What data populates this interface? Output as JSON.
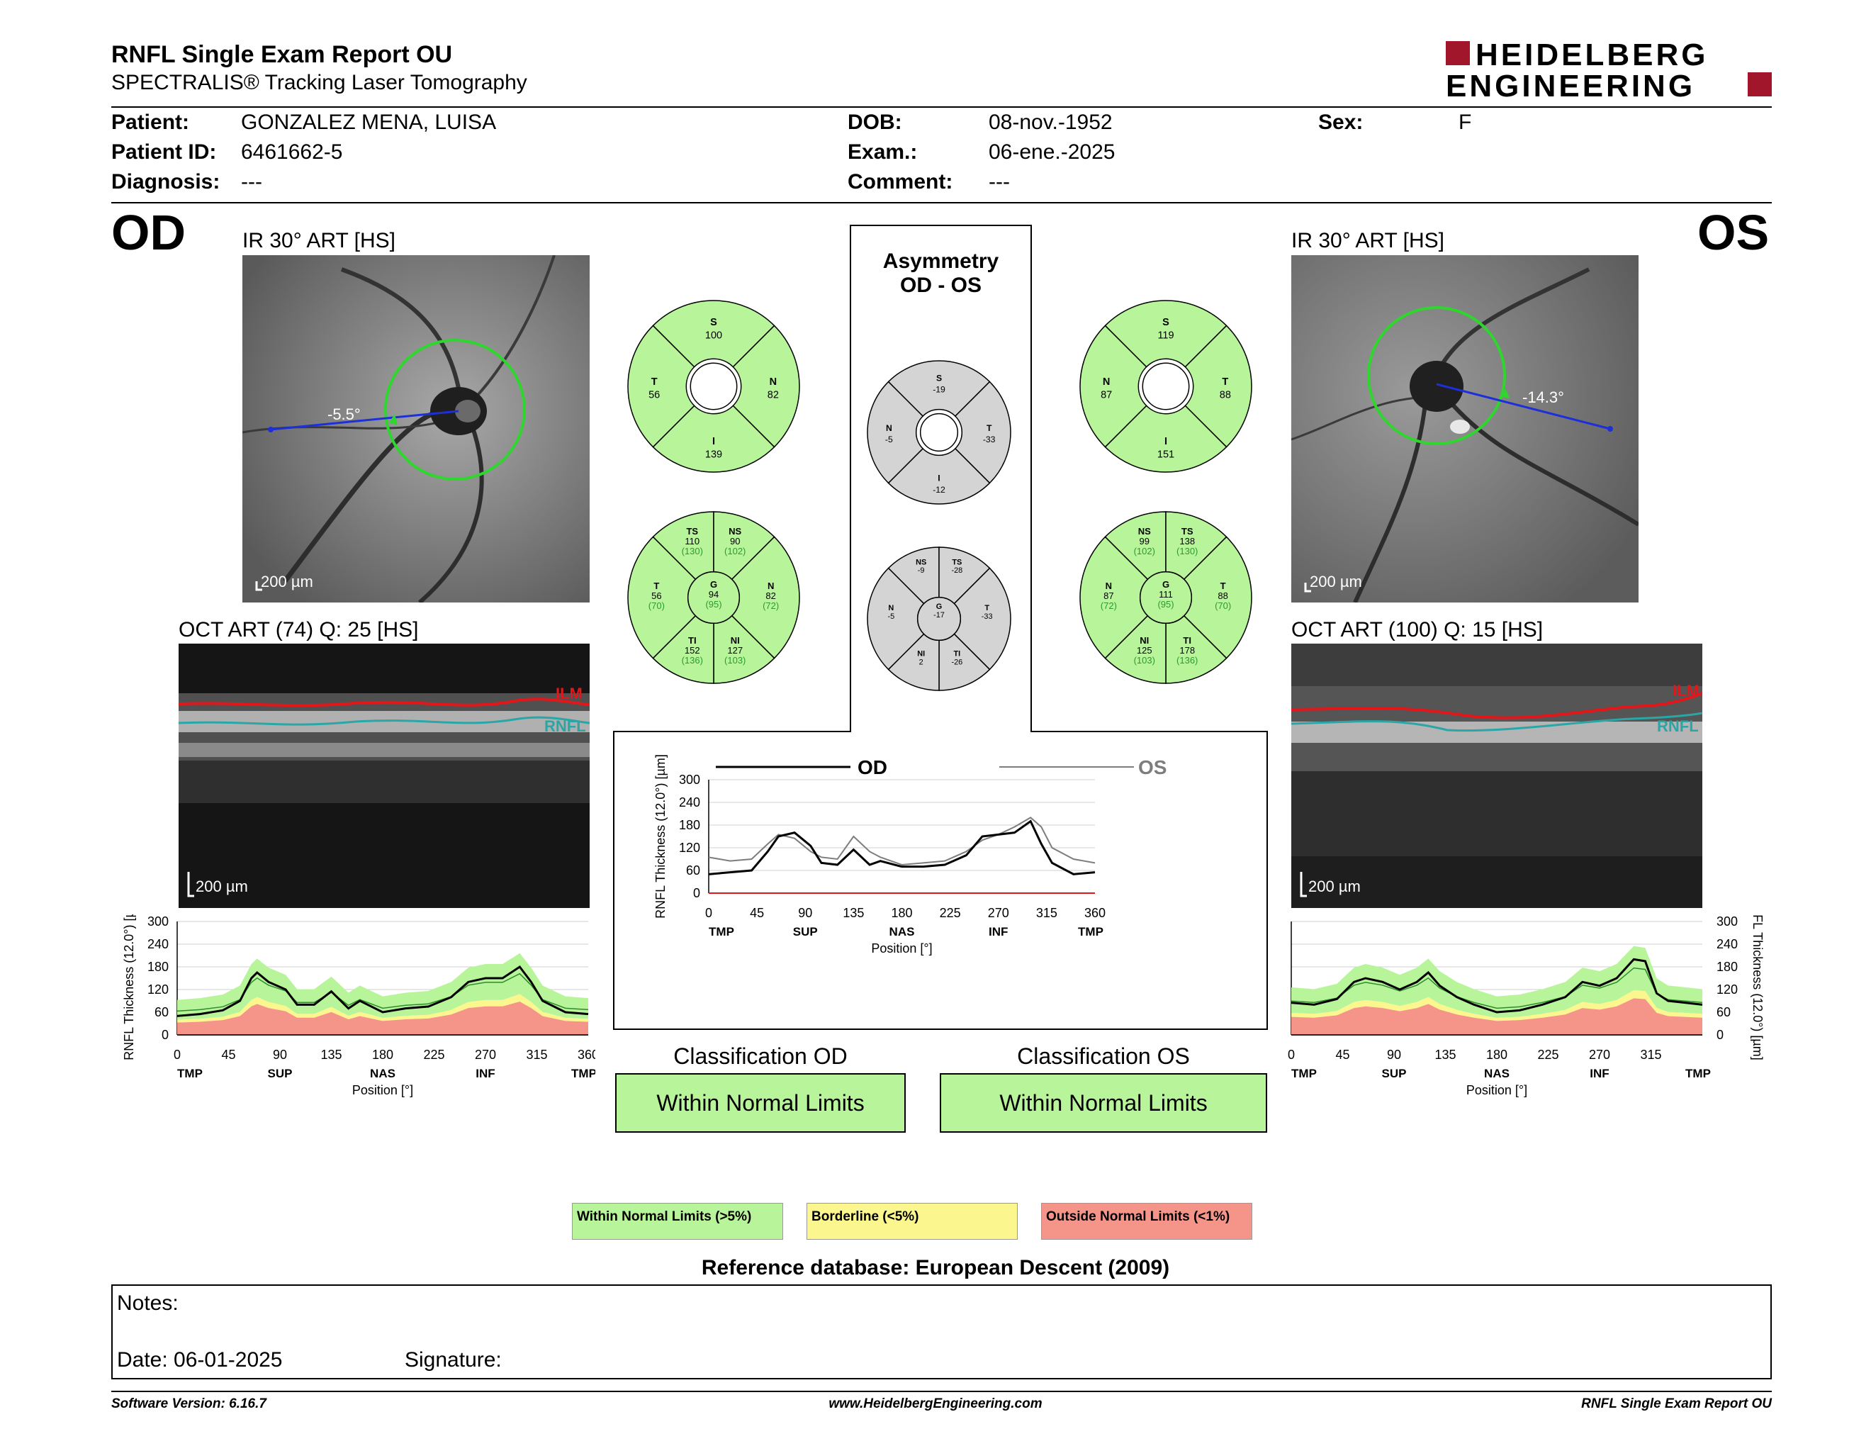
{
  "header": {
    "title": "RNFL Single Exam Report OU",
    "subtitle": "SPECTRALIS® Tracking Laser Tomography",
    "brand_line1": "HEIDELBERG",
    "brand_line2": "ENGINEERING"
  },
  "patient": {
    "patient_label": "Patient:",
    "patient_value": "GONZALEZ MENA, LUISA",
    "id_label": "Patient ID:",
    "id_value": "6461662-5",
    "diag_label": "Diagnosis:",
    "diag_value": "---",
    "dob_label": "DOB:",
    "dob_value": "08-nov.-1952",
    "exam_label": "Exam.:",
    "exam_value": "06-ene.-2025",
    "comment_label": "Comment:",
    "comment_value": "---",
    "sex_label": "Sex:",
    "sex_value": "F"
  },
  "od": {
    "eye": "OD",
    "ir_caption": "IR 30° ART [HS]",
    "angle": "-5.5°",
    "scale_ir": "200 µm",
    "oct_caption": "OCT ART (74) Q: 25 [HS]",
    "scale_oct": "200 µm",
    "ilm": "ILM",
    "rnfl": "RNFL",
    "classification_title": "Classification OD",
    "classification": "Within Normal Limits"
  },
  "os": {
    "eye": "OS",
    "ir_caption": "IR 30° ART [HS]",
    "angle": "-14.3°",
    "scale_ir": "200 µm",
    "oct_caption": "OCT ART (100) Q: 15 [HS]",
    "scale_oct": "200 µm",
    "ilm": "ILM",
    "rnfl": "RNFL",
    "classification_title": "Classification OS",
    "classification": "Within Normal Limits"
  },
  "asymmetry_title_1": "Asymmetry",
  "asymmetry_title_2": "OD - OS",
  "sectors": {
    "od_quad": {
      "S": "100",
      "T": "56",
      "N": "82",
      "I": "139"
    },
    "os_quad": {
      "S": "119",
      "N": "87",
      "T": "88",
      "I": "151"
    },
    "asym_quad": {
      "S": "-19",
      "N": "-5",
      "T": "-33",
      "I": "-12"
    },
    "od_six": {
      "TS": "110",
      "TS_ref": "(130)",
      "NS": "90",
      "NS_ref": "(102)",
      "T": "56",
      "T_ref": "(70)",
      "G": "94",
      "G_ref": "(95)",
      "N": "82",
      "N_ref": "(72)",
      "TI": "152",
      "TI_ref": "(136)",
      "NI": "127",
      "NI_ref": "(103)"
    },
    "os_six": {
      "NS": "99",
      "NS_ref": "(102)",
      "TS": "138",
      "TS_ref": "(130)",
      "N": "87",
      "N_ref": "(72)",
      "G": "111",
      "G_ref": "(95)",
      "T": "88",
      "T_ref": "(70)",
      "NI": "125",
      "NI_ref": "(103)",
      "TI": "178",
      "TI_ref": "(136)"
    },
    "asym_six": {
      "NS": "-9",
      "TS": "-28",
      "N": "-5",
      "G": "-17",
      "T": "-33",
      "NI": "2",
      "TI": "-26"
    }
  },
  "chart_data": [
    {
      "type": "line",
      "title": "",
      "ylabel": "RNFL Thickness (12.0°) [µm]",
      "xlabel": "Position [°]",
      "xlim": [
        0,
        360
      ],
      "ylim": [
        0,
        300
      ],
      "yticks": [
        "0",
        "60",
        "120",
        "180",
        "240",
        "300"
      ],
      "xticks": [
        "0",
        "45",
        "90",
        "135",
        "180",
        "225",
        "270",
        "315",
        "360"
      ],
      "sector_labels": [
        "TMP",
        "SUP",
        "NAS",
        "INF",
        "TMP"
      ],
      "series": [
        {
          "name": "OD",
          "x": [
            0,
            20,
            40,
            55,
            65,
            80,
            95,
            105,
            120,
            135,
            150,
            160,
            180,
            200,
            220,
            240,
            255,
            270,
            285,
            300,
            310,
            320,
            340,
            360
          ],
          "values": [
            50,
            55,
            60,
            110,
            150,
            160,
            125,
            80,
            75,
            115,
            75,
            85,
            70,
            70,
            75,
            100,
            150,
            155,
            160,
            190,
            130,
            80,
            50,
            55
          ]
        },
        {
          "name": "OS",
          "x": [
            0,
            20,
            40,
            55,
            65,
            80,
            95,
            105,
            120,
            135,
            150,
            160,
            180,
            200,
            220,
            240,
            255,
            270,
            285,
            300,
            310,
            320,
            340,
            360
          ],
          "values": [
            95,
            85,
            90,
            130,
            155,
            145,
            110,
            95,
            90,
            150,
            110,
            95,
            75,
            80,
            85,
            110,
            140,
            155,
            175,
            200,
            175,
            120,
            90,
            80
          ]
        }
      ],
      "legend": [
        "OD",
        "OS"
      ]
    },
    {
      "type": "area",
      "ylabel": "RNFL Thickness (12.0°) [µm]",
      "xlabel": "Position [°]",
      "xlim": [
        0,
        360
      ],
      "ylim": [
        0,
        300
      ],
      "yticks": [
        "0",
        "60",
        "120",
        "180",
        "240",
        "300"
      ],
      "xticks": [
        "0",
        "45",
        "90",
        "135",
        "180",
        "225",
        "270",
        "315",
        "360"
      ],
      "sector_labels": [
        "TMP",
        "SUP",
        "NAS",
        "INF",
        "TMP"
      ],
      "series": [
        {
          "name": "measured",
          "x": [
            0,
            20,
            40,
            55,
            65,
            70,
            80,
            95,
            105,
            120,
            135,
            150,
            160,
            180,
            200,
            220,
            240,
            255,
            270,
            285,
            300,
            310,
            320,
            340,
            360
          ],
          "values": [
            50,
            55,
            65,
            90,
            150,
            165,
            140,
            120,
            80,
            80,
            115,
            70,
            90,
            60,
            70,
            75,
            100,
            140,
            150,
            150,
            180,
            140,
            90,
            60,
            55
          ]
        }
      ]
    },
    {
      "type": "area",
      "ylabel": "RNFL Thickness (12.0°) [µm]",
      "xlabel": "Position [°]",
      "xlim": [
        0,
        360
      ],
      "ylim": [
        0,
        300
      ],
      "yticks": [
        "0",
        "60",
        "120",
        "180",
        "240",
        "300"
      ],
      "xticks": [
        "0",
        "45",
        "90",
        "135",
        "180",
        "225",
        "270",
        "315"
      ],
      "sector_labels": [
        "TMP",
        "SUP",
        "NAS",
        "INF",
        "TMP"
      ],
      "series": [
        {
          "name": "measured",
          "x": [
            0,
            20,
            40,
            55,
            65,
            80,
            95,
            110,
            120,
            130,
            145,
            160,
            180,
            200,
            220,
            240,
            255,
            270,
            285,
            300,
            310,
            320,
            330,
            345,
            360
          ],
          "values": [
            85,
            80,
            95,
            140,
            150,
            140,
            120,
            140,
            165,
            130,
            100,
            80,
            60,
            65,
            80,
            100,
            140,
            130,
            150,
            200,
            195,
            110,
            90,
            85,
            80
          ]
        }
      ]
    }
  ],
  "legend": {
    "normal": "Within Normal Limits (>5%)",
    "borderline": "Borderline (<5%)",
    "outside": "Outside Normal Limits (<1%)"
  },
  "reference_db": "Reference database: European Descent (2009)",
  "notes": {
    "notes_label": "Notes:",
    "date_label": "Date: 06-01-2025",
    "signature_label": "Signature:"
  },
  "footer": {
    "version": "Software Version: 6.16.7",
    "url": "www.HeidelbergEngineering.com",
    "report": "RNFL Single Exam Report OU"
  },
  "colors": {
    "normal": "#b8f59a",
    "borderline": "#fbf78e",
    "outside": "#f5958a",
    "asym": "#d4d4d4",
    "brand": "#a1162a"
  }
}
